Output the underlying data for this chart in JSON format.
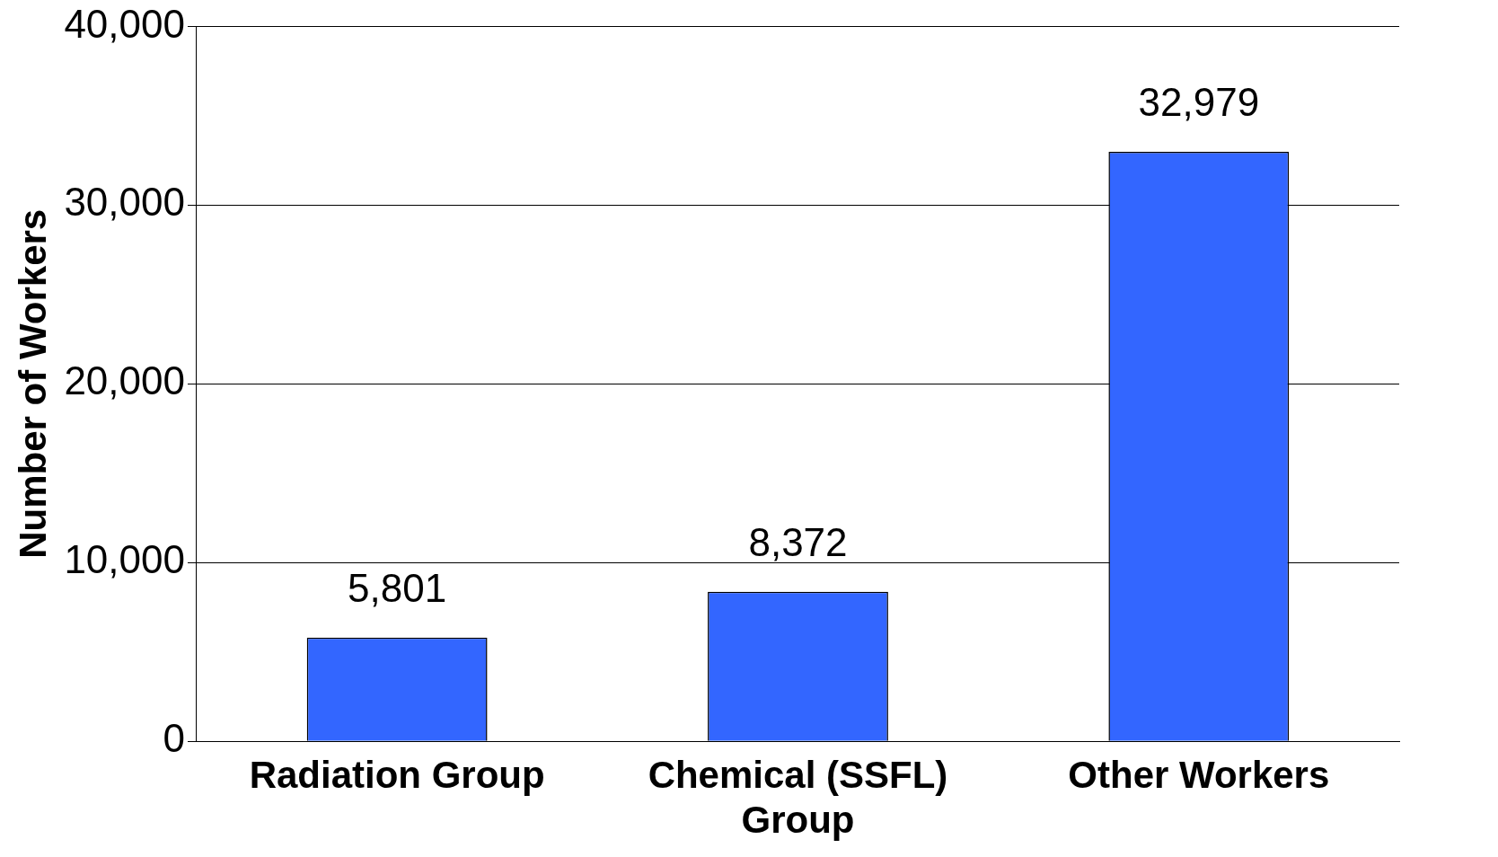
{
  "chart_data": {
    "type": "bar",
    "ylabel": "Number of Workers",
    "categories": [
      "Radiation Group",
      "Chemical (SSFL) Group",
      "Other Workers"
    ],
    "values": [
      5801,
      8372,
      32979
    ],
    "color": "#3366ff",
    "value_labels": [
      "5,801",
      "8,372",
      "32,979"
    ],
    "ylim": [
      0,
      40000
    ],
    "yticks": [
      {
        "value": 0,
        "label": "0"
      },
      {
        "value": 10000,
        "label": "10,000"
      },
      {
        "value": 20000,
        "label": "20,000"
      },
      {
        "value": 30000,
        "label": "30,000"
      },
      {
        "value": 40000,
        "label": "40,000"
      }
    ],
    "grid": "y"
  }
}
